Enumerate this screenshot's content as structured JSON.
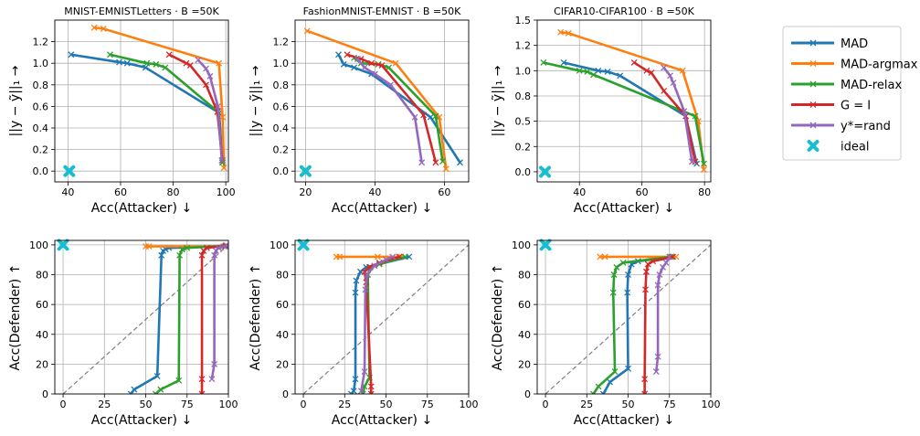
{
  "colors": {
    "MAD": "#1f77b4",
    "MAD-argmax": "#ff7f0e",
    "MAD-relax": "#2ca02c",
    "G = I": "#d62728",
    "y*=rand": "#9467bd",
    "ideal": "#17becf",
    "diagonal": "#7f7f7f",
    "grid": "#b0b0b0"
  },
  "legend": {
    "placement": "right",
    "entries": [
      "MAD",
      "MAD-argmax",
      "MAD-relax",
      "G = I",
      "y*=rand",
      "ideal"
    ]
  },
  "chart_data": [
    {
      "type": "line",
      "title": "MNIST-EMNISTLetters · B =50K",
      "xlabel": "Acc(Attacker) ↓",
      "ylabel": "||y − ỹ||₁ →",
      "xlim": [
        35,
        101
      ],
      "ylim": [
        -0.1,
        1.4
      ],
      "xticks": [
        40,
        60,
        80,
        100
      ],
      "yticks": [
        0.0,
        0.2,
        0.4,
        0.6,
        0.8,
        1.0,
        1.2
      ],
      "ytick_labels": [
        "0.0",
        "0.2",
        "0.4",
        "0.6",
        "0.8",
        "1.0",
        "1.2"
      ],
      "grid": true,
      "series": [
        {
          "name": "MAD",
          "points": [
            [
              41.2,
              1.08
            ],
            [
              59.5,
              1.01
            ],
            [
              62.5,
              1.0
            ],
            [
              69.5,
              0.96
            ],
            [
              97.5,
              0.54
            ],
            [
              98.7,
              0.08
            ]
          ]
        },
        {
          "name": "MAD-argmax",
          "points": [
            [
              50,
              1.33
            ],
            [
              53.5,
              1.32
            ],
            [
              97.4,
              1.0
            ],
            [
              98.8,
              0.5
            ],
            [
              99.3,
              0.03
            ]
          ]
        },
        {
          "name": "MAD-relax",
          "points": [
            [
              56,
              1.08
            ],
            [
              70,
              1.0
            ],
            [
              73.5,
              0.99
            ],
            [
              77,
              0.96
            ],
            [
              97,
              0.55
            ],
            [
              98.7,
              0.08
            ]
          ]
        },
        {
          "name": "G = I",
          "points": [
            [
              78.5,
              1.08
            ],
            [
              85,
              1.0
            ],
            [
              86.5,
              0.98
            ],
            [
              92.5,
              0.8
            ],
            [
              96.8,
              0.55
            ],
            [
              98.7,
              0.1
            ]
          ]
        },
        {
          "name": "y*=rand",
          "points": [
            [
              89.5,
              1.03
            ],
            [
              92.5,
              0.95
            ],
            [
              94,
              0.88
            ],
            [
              97,
              0.6
            ],
            [
              98.5,
              0.1
            ]
          ]
        }
      ],
      "ideal": [
        [
          40.5,
          0.0
        ]
      ]
    },
    {
      "type": "line",
      "title": "FashionMNIST-EMNIST · B =50K",
      "xlabel": "Acc(Attacker) ↓",
      "ylabel": "||y − ỹ||₁ →",
      "xlim": [
        17,
        67
      ],
      "ylim": [
        -0.1,
        1.4
      ],
      "xticks": [
        20,
        40,
        60
      ],
      "yticks": [
        0.0,
        0.2,
        0.4,
        0.6,
        0.8,
        1.0,
        1.2
      ],
      "ytick_labels": [
        "0.0",
        "0.2",
        "0.4",
        "0.6",
        "0.8",
        "1.0",
        "1.2"
      ],
      "grid": true,
      "series": [
        {
          "name": "MAD",
          "points": [
            [
              29.5,
              1.08
            ],
            [
              31,
              0.99
            ],
            [
              34,
              0.96
            ],
            [
              39,
              0.9
            ],
            [
              56,
              0.5
            ],
            [
              64.5,
              0.08
            ]
          ]
        },
        {
          "name": "MAD-argmax",
          "points": [
            [
              20.5,
              1.3
            ],
            [
              46,
              1.0
            ],
            [
              58.5,
              0.5
            ],
            [
              60.5,
              0.02
            ]
          ]
        },
        {
          "name": "MAD-relax",
          "points": [
            [
              34,
              1.05
            ],
            [
              36,
              1.0
            ],
            [
              41,
              0.99
            ],
            [
              44,
              0.96
            ],
            [
              57.5,
              0.51
            ],
            [
              59.5,
              0.09
            ]
          ]
        },
        {
          "name": "G = I",
          "points": [
            [
              32,
              1.08
            ],
            [
              36,
              1.04
            ],
            [
              39,
              1.0
            ],
            [
              42,
              0.98
            ],
            [
              54,
              0.52
            ],
            [
              57.5,
              0.08
            ]
          ]
        },
        {
          "name": "y*=rand",
          "points": [
            [
              35,
              1.04
            ],
            [
              37,
              0.96
            ],
            [
              40,
              0.9
            ],
            [
              44.5,
              0.8
            ],
            [
              51.5,
              0.5
            ],
            [
              53.5,
              0.08
            ]
          ]
        }
      ],
      "ideal": [
        [
          20,
          0.0
        ]
      ]
    },
    {
      "type": "line",
      "title": "CIFAR10-CIFAR100 · B =50K",
      "xlabel": "Acc(Attacker) ↓",
      "ylabel": "||y − ỹ||₁ →",
      "xlim": [
        26.5,
        82
      ],
      "ylim": [
        -0.1,
        1.5
      ],
      "xticks": [
        40,
        60,
        80
      ],
      "yticks": [
        0.0,
        0.25,
        0.5,
        0.75,
        1.0,
        1.25,
        1.5
      ],
      "ytick_labels": [
        "0.0",
        "0.2",
        "0.5",
        "0.8",
        "1.0",
        "1.2",
        "1.5"
      ],
      "grid": true,
      "series": [
        {
          "name": "MAD",
          "points": [
            [
              35,
              1.08
            ],
            [
              46,
              1.0
            ],
            [
              49,
              0.99
            ],
            [
              53,
              0.95
            ],
            [
              74,
              0.55
            ],
            [
              77.5,
              0.08
            ]
          ]
        },
        {
          "name": "MAD-argmax",
          "points": [
            [
              34,
              1.38
            ],
            [
              36.5,
              1.37
            ],
            [
              73,
              1.0
            ],
            [
              78,
              0.5
            ],
            [
              79.8,
              0.02
            ]
          ]
        },
        {
          "name": "MAD-relax",
          "points": [
            [
              28.5,
              1.08
            ],
            [
              40,
              1.0
            ],
            [
              42.5,
              0.99
            ],
            [
              44.5,
              0.96
            ],
            [
              77,
              0.55
            ],
            [
              79.8,
              0.08
            ]
          ]
        },
        {
          "name": "G = I",
          "points": [
            [
              57.5,
              1.08
            ],
            [
              61.5,
              1.0
            ],
            [
              63,
              0.98
            ],
            [
              67,
              0.8
            ],
            [
              74,
              0.55
            ],
            [
              77,
              0.1
            ]
          ]
        },
        {
          "name": "y*=rand",
          "points": [
            [
              67,
              1.03
            ],
            [
              69,
              0.95
            ],
            [
              70,
              0.88
            ],
            [
              73.5,
              0.6
            ],
            [
              76,
              0.1
            ]
          ]
        }
      ],
      "ideal": [
        [
          29,
          0.0
        ]
      ]
    },
    {
      "type": "line",
      "title": "",
      "xlabel": "Acc(Attacker) ↓",
      "ylabel": "Acc(Defender) ↑",
      "xlim": [
        -5,
        100
      ],
      "ylim": [
        0,
        103
      ],
      "xticks": [
        0,
        25,
        50,
        75,
        100
      ],
      "yticks": [
        0,
        20,
        40,
        60,
        80,
        100
      ],
      "grid": true,
      "diagonal": true,
      "series": [
        {
          "name": "MAD",
          "points": [
            [
              41,
              0
            ],
            [
              43,
              3
            ],
            [
              57,
              12
            ],
            [
              59.5,
              93
            ],
            [
              60.5,
              96
            ],
            [
              62,
              97
            ],
            [
              64,
              98
            ],
            [
              98,
              99
            ]
          ]
        },
        {
          "name": "MAD-argmax",
          "points": [
            [
              50,
              99
            ],
            [
              52,
              99
            ],
            [
              97,
              99
            ],
            [
              99,
              99.5
            ]
          ]
        },
        {
          "name": "MAD-relax",
          "points": [
            [
              56,
              0
            ],
            [
              59,
              3
            ],
            [
              70,
              9
            ],
            [
              70.5,
              93
            ],
            [
              72,
              97
            ],
            [
              75,
              98
            ],
            [
              98.5,
              99.5
            ]
          ]
        },
        {
          "name": "G = I",
          "points": [
            [
              84,
              0
            ],
            [
              84,
              10
            ],
            [
              84,
              93
            ],
            [
              85,
              96
            ],
            [
              87,
              98
            ],
            [
              98.5,
              99.5
            ]
          ]
        },
        {
          "name": "y*=rand",
          "points": [
            [
              90,
              10
            ],
            [
              91.5,
              20
            ],
            [
              91.5,
              93
            ],
            [
              92.5,
              96
            ],
            [
              94,
              98
            ],
            [
              99,
              99.5
            ]
          ]
        }
      ],
      "ideal": [
        [
          0,
          100
        ]
      ]
    },
    {
      "type": "line",
      "title": "",
      "xlabel": "Acc(Attacker) ↓",
      "ylabel": "Acc(Defender) ↑",
      "xlim": [
        -5,
        100
      ],
      "ylim": [
        0,
        103
      ],
      "xticks": [
        0,
        25,
        50,
        75,
        100
      ],
      "yticks": [
        0,
        20,
        40,
        60,
        80,
        100
      ],
      "grid": true,
      "diagonal": true,
      "series": [
        {
          "name": "MAD",
          "points": [
            [
              29,
              0
            ],
            [
              30.5,
              2
            ],
            [
              31.5,
              10
            ],
            [
              31.5,
              68
            ],
            [
              32,
              76
            ],
            [
              34.5,
              82
            ],
            [
              38,
              85
            ],
            [
              64,
              92
            ]
          ]
        },
        {
          "name": "MAD-argmax",
          "points": [
            [
              20,
              92
            ],
            [
              22,
              92
            ],
            [
              45,
              92
            ],
            [
              59,
              92
            ]
          ]
        },
        {
          "name": "MAD-relax",
          "points": [
            [
              36,
              0
            ],
            [
              37,
              5
            ],
            [
              40,
              11
            ],
            [
              39,
              80
            ],
            [
              40.5,
              85
            ],
            [
              46,
              87
            ],
            [
              61.5,
              92
            ]
          ]
        },
        {
          "name": "G = I",
          "points": [
            [
              41,
              0
            ],
            [
              41,
              5
            ],
            [
              38,
              75
            ],
            [
              37,
              82
            ],
            [
              40,
              85
            ],
            [
              46,
              88
            ],
            [
              58,
              92
            ]
          ]
        },
        {
          "name": "y*=rand",
          "points": [
            [
              35,
              2
            ],
            [
              37,
              15
            ],
            [
              37.5,
              70
            ],
            [
              38.5,
              80
            ],
            [
              43,
              86
            ],
            [
              50,
              90
            ],
            [
              54,
              92
            ]
          ]
        }
      ],
      "ideal": [
        [
          0,
          100
        ]
      ]
    },
    {
      "type": "line",
      "title": "",
      "xlabel": "Acc(Attacker) ↓",
      "ylabel": "Acc(Defender) ↑",
      "xlim": [
        -5,
        100
      ],
      "ylim": [
        0,
        103
      ],
      "xticks": [
        0,
        25,
        50,
        75,
        100
      ],
      "yticks": [
        0,
        20,
        40,
        60,
        80,
        100
      ],
      "grid": true,
      "diagonal": true,
      "series": [
        {
          "name": "MAD",
          "points": [
            [
              35,
              0
            ],
            [
              39,
              8
            ],
            [
              50,
              17
            ],
            [
              49.5,
              68
            ],
            [
              50,
              80
            ],
            [
              52,
              87
            ],
            [
              56,
              89
            ],
            [
              77,
              92
            ]
          ]
        },
        {
          "name": "MAD-argmax",
          "points": [
            [
              33,
              92
            ],
            [
              36,
              92
            ],
            [
              75,
              92
            ],
            [
              79,
              92
            ]
          ]
        },
        {
          "name": "MAD-relax",
          "points": [
            [
              29,
              0
            ],
            [
              32,
              5
            ],
            [
              42,
              15
            ],
            [
              41,
              68
            ],
            [
              41.5,
              80
            ],
            [
              43,
              85
            ],
            [
              47,
              88
            ],
            [
              76,
              92
            ]
          ]
        },
        {
          "name": "G = I",
          "points": [
            [
              60,
              0
            ],
            [
              60,
              10
            ],
            [
              60.5,
              70
            ],
            [
              61,
              82
            ],
            [
              62,
              87
            ],
            [
              65,
              89
            ],
            [
              77,
              92
            ]
          ]
        },
        {
          "name": "y*=rand",
          "points": [
            [
              67,
              15
            ],
            [
              68,
              25
            ],
            [
              68,
              73
            ],
            [
              69,
              80
            ],
            [
              71,
              85
            ],
            [
              73,
              88
            ],
            [
              75,
              92
            ]
          ]
        }
      ],
      "ideal": [
        [
          0,
          100
        ]
      ]
    }
  ]
}
